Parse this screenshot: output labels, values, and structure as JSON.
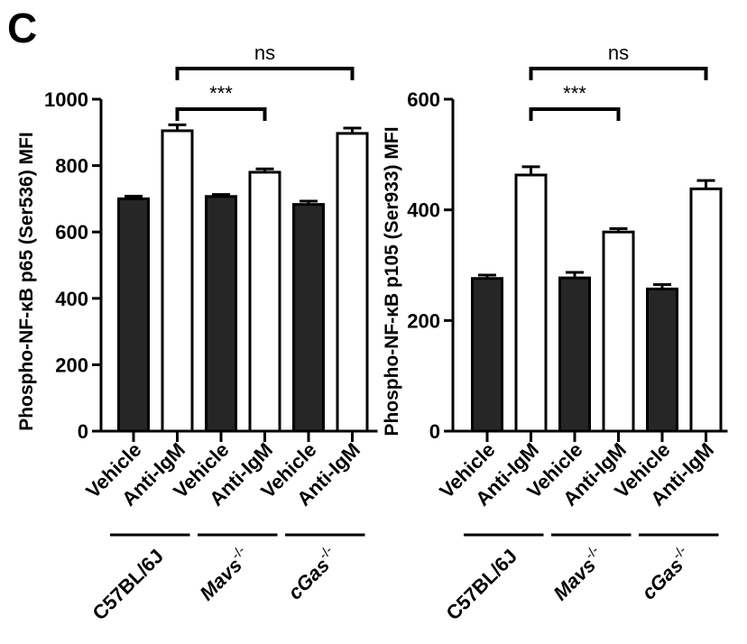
{
  "panel_label": "C",
  "colors": {
    "dark_bar": "#262626",
    "light_bar": "#ffffff",
    "stroke": "#000000"
  },
  "chart_data": [
    {
      "type": "bar",
      "ylabel": "Phospho-NF-κB p65 (Ser536) MFI",
      "ylim": [
        0,
        1000
      ],
      "yticks": [
        0,
        200,
        400,
        600,
        800,
        1000
      ],
      "categories": [
        "Vehicle",
        "Anti-IgM",
        "Vehicle",
        "Anti-IgM",
        "Vehicle",
        "Anti-IgM"
      ],
      "values": [
        700,
        905,
        707,
        780,
        683,
        897
      ],
      "errors": [
        8,
        18,
        6,
        10,
        10,
        16
      ],
      "fills": [
        "dark",
        "light",
        "dark",
        "light",
        "dark",
        "light"
      ],
      "groups": [
        {
          "name": "C57BL/6J",
          "superscript": "",
          "italic": false
        },
        {
          "name": "Mavs",
          "superscript": "-/-",
          "italic": true
        },
        {
          "name": "cGas",
          "superscript": "-/-",
          "italic": true
        }
      ],
      "significance": [
        {
          "from": 1,
          "to": 3,
          "label": "***",
          "level": 1
        },
        {
          "from": 1,
          "to": 5,
          "label": "ns",
          "level": 2
        }
      ]
    },
    {
      "type": "bar",
      "ylabel": "Phospho-NF-κB p105 (Ser933) MFI",
      "ylim": [
        0,
        600
      ],
      "yticks": [
        0,
        200,
        400,
        600
      ],
      "categories": [
        "Vehicle",
        "Anti-IgM",
        "Vehicle",
        "Anti-IgM",
        "Vehicle",
        "Anti-IgM"
      ],
      "values": [
        276,
        463,
        277,
        360,
        257,
        438
      ],
      "errors": [
        6,
        15,
        10,
        6,
        8,
        15
      ],
      "fills": [
        "dark",
        "light",
        "dark",
        "light",
        "dark",
        "light"
      ],
      "groups": [
        {
          "name": "C57BL/6J",
          "superscript": "",
          "italic": false
        },
        {
          "name": "Mavs",
          "superscript": "-/-",
          "italic": true
        },
        {
          "name": "cGas",
          "superscript": "-/-",
          "italic": true
        }
      ],
      "significance": [
        {
          "from": 1,
          "to": 3,
          "label": "***",
          "level": 1
        },
        {
          "from": 1,
          "to": 5,
          "label": "ns",
          "level": 2
        }
      ]
    }
  ]
}
